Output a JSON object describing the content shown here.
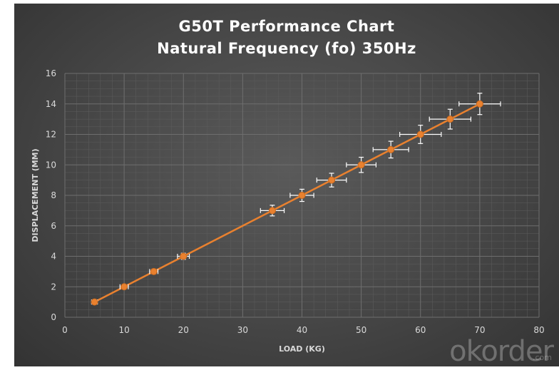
{
  "chart_data": {
    "type": "scatter",
    "title": "G50T Performance Chart",
    "subtitle": "Natural Frequency (fo) 350Hz",
    "xlabel": "LOAD (KG)",
    "ylabel": "DISPLACEMENT (MM)",
    "xlim": [
      0,
      80
    ],
    "ylim": [
      0,
      16
    ],
    "xticks": [
      0,
      10,
      20,
      30,
      40,
      50,
      60,
      70,
      80
    ],
    "yticks": [
      0,
      2,
      4,
      6,
      8,
      10,
      12,
      14,
      16
    ],
    "grid": true,
    "connected": true,
    "series": [
      {
        "x": [
          5,
          10,
          15,
          20,
          35,
          40,
          45,
          50,
          55,
          60,
          65,
          70
        ],
        "y": [
          1,
          2,
          3,
          4,
          7,
          8,
          9,
          10,
          11,
          12,
          13,
          14
        ],
        "x_error": [
          0.5,
          0.7,
          0.7,
          1,
          2,
          2,
          2.5,
          2.5,
          3,
          3.5,
          3.5,
          3.5
        ],
        "y_error": [
          0.05,
          0.1,
          0.15,
          0.2,
          0.35,
          0.4,
          0.45,
          0.5,
          0.55,
          0.6,
          0.65,
          0.7
        ]
      }
    ],
    "colors": {
      "marker": "#e9812f",
      "line": "#e9812f",
      "error_bar": "#ffffff",
      "grid": "#6e6e6e",
      "text": "#d9d9d9"
    }
  },
  "watermark": {
    "brand": "okorder",
    "suffix": ".com"
  }
}
